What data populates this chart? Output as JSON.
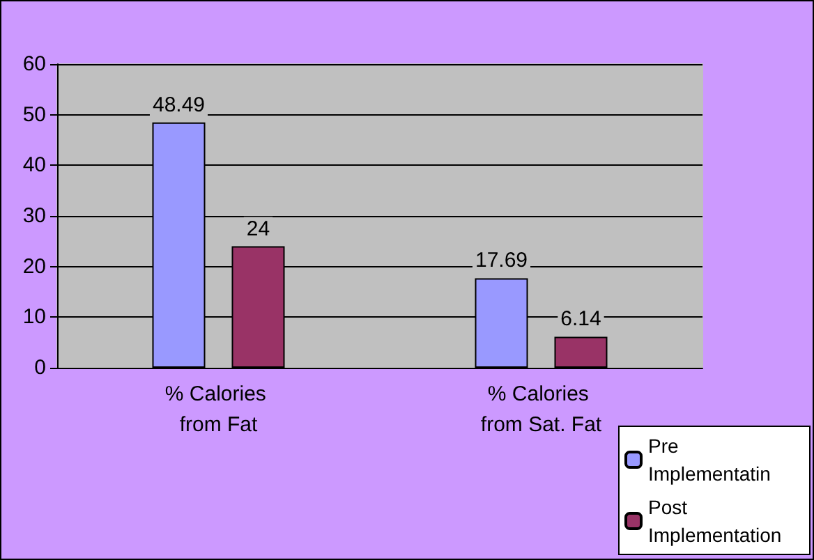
{
  "chart_data": {
    "type": "bar",
    "categories": [
      "% Calories from Fat",
      "% Calories from Sat. Fat"
    ],
    "series": [
      {
        "name": "Pre Implementatin",
        "color": "#9999ff",
        "values": [
          48.49,
          17.69
        ]
      },
      {
        "name": "Post Implementation",
        "color": "#993366",
        "values": [
          24,
          6.14
        ]
      }
    ],
    "ylim": [
      0,
      60
    ],
    "yticks": [
      0,
      10,
      20,
      30,
      40,
      50,
      60
    ],
    "grid": "y",
    "legend": "bottom right",
    "data_labels": true
  }
}
